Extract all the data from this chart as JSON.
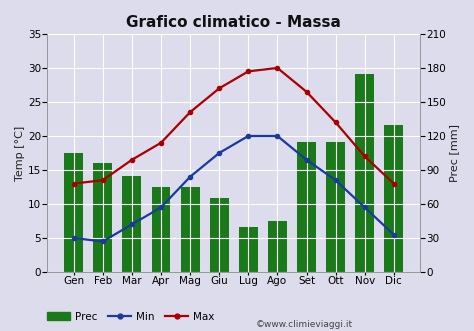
{
  "title": "Grafico climatico - Massa",
  "months": [
    "Gen",
    "Feb",
    "Mar",
    "Apr",
    "Mag",
    "Giu",
    "Lug",
    "Ago",
    "Set",
    "Ott",
    "Nov",
    "Dic"
  ],
  "prec": [
    105,
    96,
    85,
    75,
    75,
    65,
    40,
    45,
    115,
    115,
    175,
    130
  ],
  "temp_min": [
    5.0,
    4.5,
    7.0,
    9.5,
    14.0,
    17.5,
    20.0,
    20.0,
    16.5,
    13.5,
    9.5,
    5.5
  ],
  "temp_max": [
    13.0,
    13.5,
    16.5,
    19.0,
    23.5,
    27.0,
    29.5,
    30.0,
    26.5,
    22.0,
    17.0,
    13.0
  ],
  "bar_color": "#1a7a1a",
  "line_min_color": "#1a3a9c",
  "line_max_color": "#aa0000",
  "background_color": "#dcdcec",
  "grid_color": "#ffffff",
  "ylabel_left": "Temp [°C]",
  "ylabel_right": "Prec [mm]",
  "ylim_left": [
    0,
    35
  ],
  "ylim_right": [
    0,
    210
  ],
  "yticks_left": [
    0,
    5,
    10,
    15,
    20,
    25,
    30,
    35
  ],
  "yticks_right": [
    0,
    30,
    60,
    90,
    120,
    150,
    180,
    210
  ],
  "legend_prec": "Prec",
  "legend_min": "Min",
  "legend_max": "Max",
  "watermark": "©www.climieviaggi.it",
  "title_fontsize": 11,
  "label_fontsize": 8,
  "tick_fontsize": 7.5
}
